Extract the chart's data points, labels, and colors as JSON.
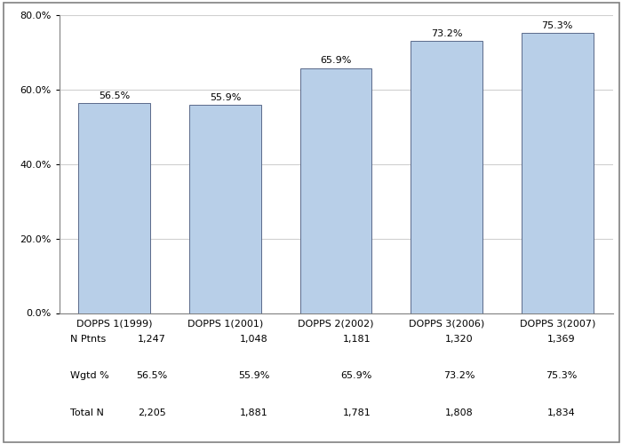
{
  "categories": [
    "DOPPS 1(1999)",
    "DOPPS 1(2001)",
    "DOPPS 2(2002)",
    "DOPPS 3(2006)",
    "DOPPS 3(2007)"
  ],
  "values": [
    56.5,
    55.9,
    65.9,
    73.2,
    75.3
  ],
  "bar_color": "#b8cfe8",
  "bar_edge_color": "#5a6a8a",
  "bar_labels": [
    "56.5%",
    "55.9%",
    "65.9%",
    "73.2%",
    "75.3%"
  ],
  "ylim": [
    0,
    80
  ],
  "yticks": [
    0,
    20,
    40,
    60,
    80
  ],
  "ytick_labels": [
    "0.0%",
    "20.0%",
    "40.0%",
    "60.0%",
    "80.0%"
  ],
  "grid_color": "#d0d0d0",
  "background_color": "#ffffff",
  "table_row_labels": [
    "N Ptnts",
    "Wgtd %",
    "Total N"
  ],
  "table_data": [
    [
      "1,247",
      "1,048",
      "1,181",
      "1,320",
      "1,369"
    ],
    [
      "56.5%",
      "55.9%",
      "65.9%",
      "73.2%",
      "75.3%"
    ],
    [
      "2,205",
      "1,881",
      "1,781",
      "1,808",
      "1,834"
    ]
  ],
  "tick_fontsize": 8,
  "bar_label_fontsize": 8,
  "table_fontsize": 8,
  "border_color": "#808080"
}
